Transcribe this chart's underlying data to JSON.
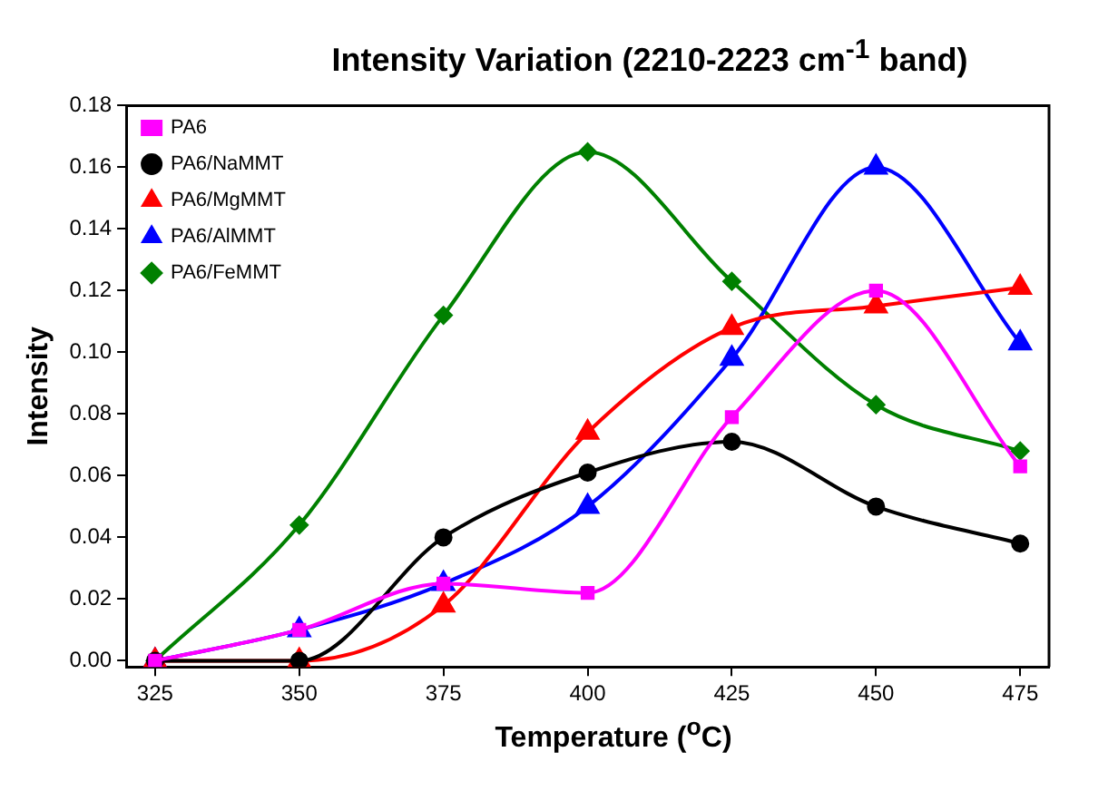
{
  "chart_data": {
    "type": "line",
    "title": "Intensity Variation (2210-2223 cm$^{-1}$ band)",
    "xlabel": "Temperature ($^{o}$C)",
    "ylabel": "Intensity",
    "x": [
      325,
      350,
      375,
      400,
      425,
      450,
      475
    ],
    "series": [
      {
        "name": "PA6",
        "color": "#ff00ff",
        "marker": "square",
        "values": [
          0,
          0.01,
          0.025,
          0.022,
          0.079,
          0.12,
          0.063
        ]
      },
      {
        "name": "PA6/NaMMT",
        "color": "#000000",
        "marker": "circle",
        "values": [
          0,
          0,
          0.04,
          0.061,
          0.071,
          0.05,
          0.038
        ]
      },
      {
        "name": "PA6/MgMMT",
        "color": "#ff0000",
        "marker": "triangle",
        "values": [
          0,
          0,
          0.018,
          0.074,
          0.108,
          0.115,
          0.121
        ]
      },
      {
        "name": "PA6/AlMMT",
        "color": "#0000ff",
        "marker": "triangle",
        "values": [
          0,
          0.01,
          0.025,
          0.05,
          0.098,
          0.16,
          0.103
        ]
      },
      {
        "name": "PA6/FeMMT",
        "color": "#008000",
        "marker": "diamond",
        "values": [
          0,
          0.044,
          0.112,
          0.165,
          0.123,
          0.083,
          0.068
        ]
      }
    ],
    "xlim": [
      320,
      480
    ],
    "xticks": [
      325,
      350,
      375,
      400,
      425,
      450,
      475
    ],
    "ylim": [
      -0.002,
      0.18
    ],
    "yticks": [
      {
        "value": 0,
        "label": "0.00"
      },
      {
        "value": 0.02,
        "label": "0.02"
      },
      {
        "value": 0.04,
        "label": "0.04"
      },
      {
        "value": 0.06,
        "label": "0.06"
      },
      {
        "value": 0.08,
        "label": "0.08"
      },
      {
        "value": 0.1,
        "label": "0.10"
      },
      {
        "value": 0.12,
        "label": "0.12"
      },
      {
        "value": 0.14,
        "label": "0.14"
      },
      {
        "value": 0.16,
        "label": "0.16"
      },
      {
        "value": 0.18,
        "label": "0.18"
      }
    ],
    "legend": "top left",
    "grid": false,
    "line_style": "solid"
  }
}
